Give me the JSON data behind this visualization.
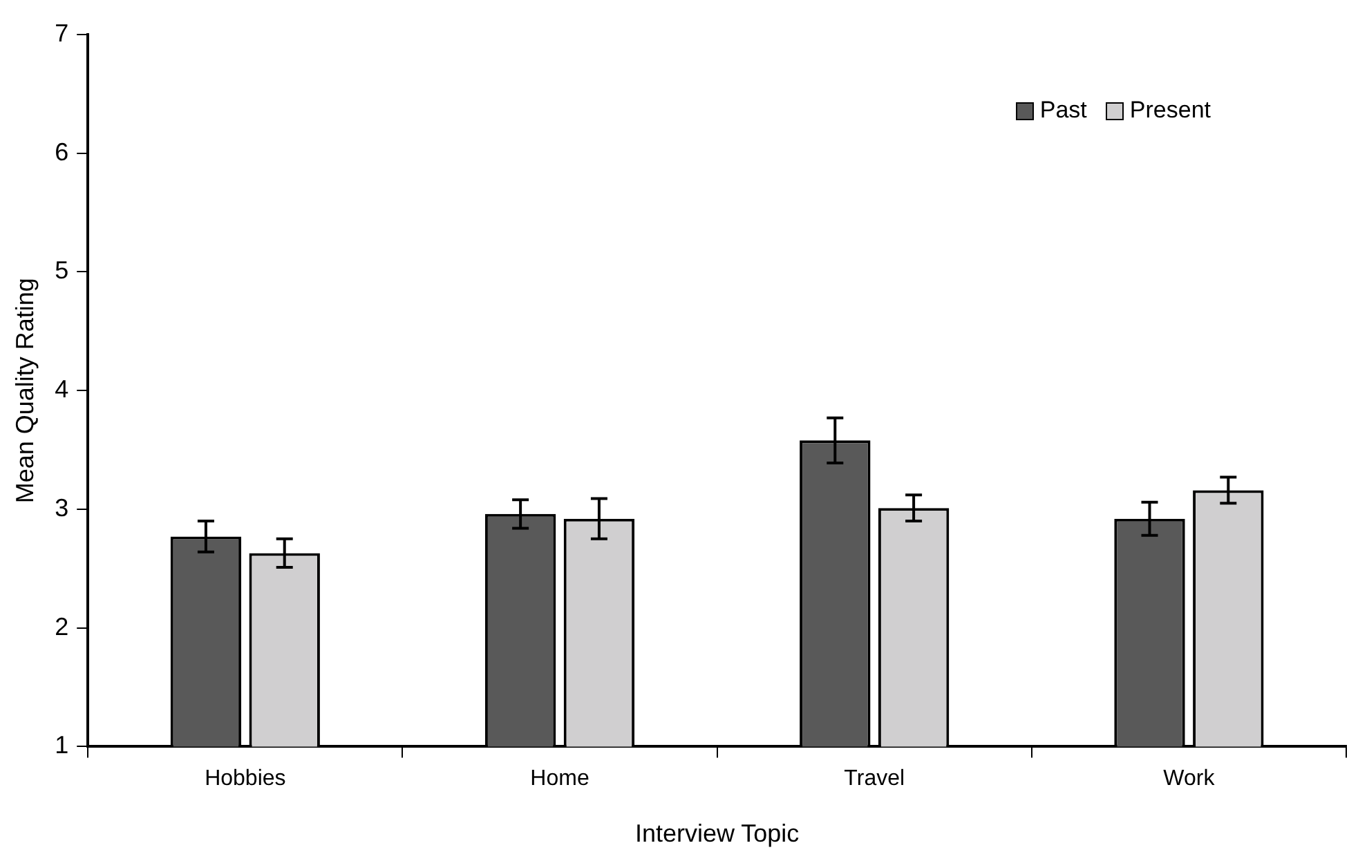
{
  "chart_data": {
    "type": "bar",
    "xlabel": "Interview Topic",
    "ylabel": "Mean Quality Rating",
    "categories": [
      "Hobbies",
      "Home",
      "Travel",
      "Work"
    ],
    "series": [
      {
        "name": "Past",
        "color": "#595959",
        "values": [
          2.77,
          2.96,
          3.58,
          2.92
        ],
        "errors": [
          0.13,
          0.12,
          0.19,
          0.14
        ]
      },
      {
        "name": "Present",
        "color": "#d0cfd0",
        "values": [
          2.63,
          2.92,
          3.01,
          3.16
        ],
        "errors": [
          0.12,
          0.17,
          0.11,
          0.11
        ]
      }
    ],
    "ylim": [
      1,
      7
    ],
    "yticks": [
      1,
      2,
      3,
      4,
      5,
      6,
      7
    ],
    "grid": false,
    "legend": "top right"
  }
}
